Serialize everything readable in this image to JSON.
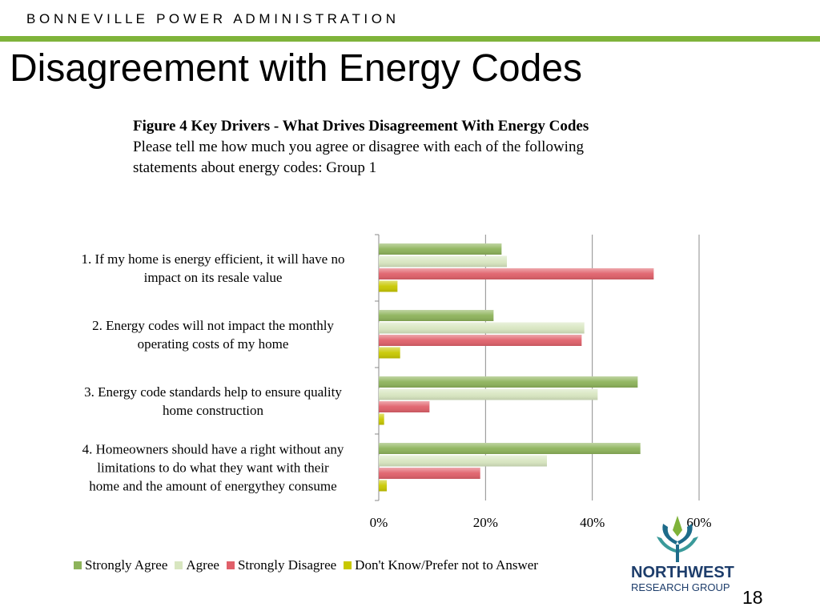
{
  "header": {
    "org": "B O N N E V I L L E   P O W E R   A D M I N I S T R A T I O N",
    "accent_color": "#7fb33a"
  },
  "slide": {
    "title": "Disagreement with Energy Codes",
    "page_number": "18"
  },
  "figure": {
    "title": "Figure 4 Key Drivers - What Drives Disagreement With Energy Codes",
    "question": "Please tell me how much you agree or disagree with each of the following statements about energy codes: Group 1"
  },
  "logo": {
    "name": "NORTHWEST",
    "subtitle": "RESEARCH GROUP"
  },
  "chart_data": {
    "type": "bar",
    "orientation": "horizontal",
    "categories": [
      "1. If my home is energy efficient, it will have no impact on its resale value",
      "2. Energy codes will not impact the monthly operating costs of my home",
      "3. Energy code standards help to ensure quality home construction",
      "4. Homeowners should have a right without any limitations to do what they want with their home and the amount of energythey consume"
    ],
    "category_lines": [
      [
        "1. If my home is energy efficient, it will have no",
        "impact on its resale value"
      ],
      [
        "2. Energy codes will not impact the monthly",
        "operating costs of my home"
      ],
      [
        "3. Energy code standards help to ensure quality",
        "home construction"
      ],
      [
        "4. Homeowners should have a right without any",
        "limitations to do what they want with their",
        "home and the amount of energythey consume"
      ]
    ],
    "series": [
      {
        "name": "Strongly Agree",
        "color": "#8db35a",
        "values": [
          23,
          21.5,
          48.5,
          49
        ]
      },
      {
        "name": "Agree",
        "color": "#d8e6c0",
        "values": [
          24,
          38.5,
          41,
          31.5
        ]
      },
      {
        "name": "Strongly Disagree",
        "color": "#e0606a",
        "values": [
          51.5,
          38,
          9.5,
          19
        ]
      },
      {
        "name": "Don't Know/Prefer not to Answer",
        "color": "#c8c800",
        "values": [
          3.5,
          4,
          1,
          1.5
        ]
      }
    ],
    "x_ticks": [
      "0%",
      "20%",
      "40%",
      "60%"
    ],
    "xlim": [
      0,
      60
    ],
    "grid": true,
    "legend": "bottom"
  }
}
